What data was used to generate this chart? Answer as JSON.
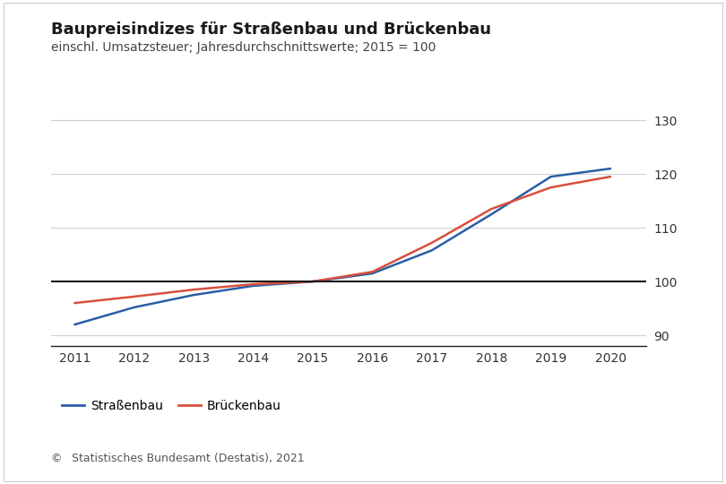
{
  "title": "Baupreisindizes für Straßenbau und Brückenbau",
  "subtitle": "einschl. Umsatzsteuer; Jahresdurchschnittswerte; 2015 = 100",
  "footer": "©   Statistisches Bundesamt (Destatis), 2021",
  "years": [
    2011,
    2012,
    2013,
    2014,
    2015,
    2016,
    2017,
    2018,
    2019,
    2020
  ],
  "strassenbau": [
    92.0,
    95.2,
    97.5,
    99.2,
    100.0,
    101.5,
    105.8,
    112.5,
    119.5,
    121.0
  ],
  "brueckenbau": [
    96.0,
    97.2,
    98.5,
    99.5,
    100.0,
    101.8,
    107.2,
    113.5,
    117.5,
    119.5
  ],
  "strassenbau_color": "#2a5fa5",
  "brueckenbau_color": "#d94f3d",
  "ylim": [
    88,
    133
  ],
  "yticks": [
    90,
    100,
    110,
    120,
    130
  ],
  "background_color": "#ffffff",
  "grid_color": "#d0d0d0",
  "spine_color": "#222222",
  "title_fontsize": 13,
  "subtitle_fontsize": 10,
  "legend_fontsize": 10,
  "footer_fontsize": 9,
  "line_width": 1.8,
  "label_strassenbau": "Straßenbau",
  "label_brueckenbau": "Brückenbau"
}
